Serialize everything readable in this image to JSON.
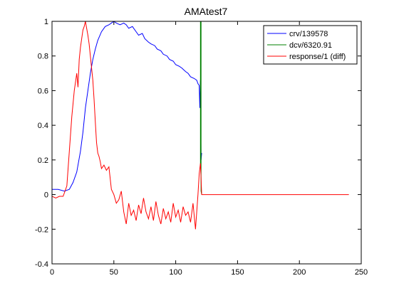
{
  "chart_data": {
    "type": "line",
    "title": "AMAtest7",
    "xlabel": "",
    "ylabel": "",
    "xlim": [
      0,
      250
    ],
    "ylim": [
      -0.4,
      1
    ],
    "xticks": [
      0,
      50,
      100,
      150,
      200,
      250
    ],
    "yticks": [
      -0.4,
      -0.2,
      0,
      0.2,
      0.4,
      0.6,
      0.8,
      1
    ],
    "grid": false,
    "legend_position": "top-right",
    "series": [
      {
        "name": "crv/139578",
        "color": "#0000ff",
        "x": [
          0,
          5,
          10,
          14,
          17,
          20,
          23,
          25,
          27,
          29,
          31,
          33,
          35,
          37,
          40,
          43,
          46,
          48,
          50,
          52,
          55,
          58,
          60,
          62,
          65,
          68,
          70,
          73,
          75,
          78,
          80,
          83,
          85,
          88,
          90,
          93,
          95,
          98,
          100,
          103,
          105,
          108,
          110,
          112,
          115,
          117,
          118,
          119,
          119.5,
          120,
          120.5,
          121
        ],
        "y": [
          0.03,
          0.03,
          0.02,
          0.03,
          0.07,
          0.13,
          0.25,
          0.36,
          0.5,
          0.6,
          0.7,
          0.78,
          0.84,
          0.89,
          0.94,
          0.97,
          0.98,
          0.99,
          1.0,
          0.99,
          0.98,
          0.99,
          0.98,
          0.96,
          0.97,
          0.94,
          0.92,
          0.93,
          0.9,
          0.88,
          0.87,
          0.86,
          0.84,
          0.83,
          0.81,
          0.8,
          0.78,
          0.77,
          0.75,
          0.74,
          0.73,
          0.71,
          0.7,
          0.68,
          0.67,
          0.66,
          0.64,
          0.63,
          0.5,
          0.66,
          0.2,
          0.24
        ]
      },
      {
        "name": "dcv/6320.91",
        "color": "#008000",
        "x": [
          120,
          120,
          120.5,
          120.5,
          121
        ],
        "y": [
          0.16,
          1.0,
          1.0,
          0.02,
          0.0
        ]
      },
      {
        "name": "response/1 (diff)",
        "color": "#ff0000",
        "x": [
          0,
          3,
          6,
          9,
          12,
          14,
          16,
          18,
          20,
          21,
          22,
          23,
          24,
          25,
          26,
          27,
          28,
          29,
          30,
          31,
          32,
          33,
          34,
          35,
          36,
          37,
          38,
          39,
          40,
          42,
          44,
          46,
          48,
          50,
          52,
          54,
          56,
          58,
          60,
          62,
          64,
          66,
          68,
          70,
          72,
          74,
          76,
          78,
          80,
          82,
          84,
          86,
          88,
          90,
          92,
          94,
          96,
          98,
          100,
          102,
          104,
          106,
          108,
          110,
          112,
          114,
          116,
          117,
          118,
          119,
          120,
          121,
          125,
          150,
          200,
          240
        ],
        "y": [
          -0.01,
          -0.02,
          -0.01,
          -0.01,
          0.05,
          0.25,
          0.45,
          0.6,
          0.7,
          0.62,
          0.78,
          0.85,
          0.9,
          0.95,
          0.97,
          1.0,
          0.96,
          0.92,
          0.87,
          0.8,
          0.73,
          0.66,
          0.55,
          0.42,
          0.3,
          0.24,
          0.22,
          0.19,
          0.15,
          0.17,
          0.14,
          0.16,
          0.03,
          0.0,
          -0.05,
          -0.03,
          0.02,
          -0.1,
          -0.17,
          -0.05,
          -0.12,
          -0.09,
          -0.15,
          -0.06,
          -0.11,
          -0.02,
          -0.1,
          -0.14,
          -0.07,
          -0.15,
          -0.04,
          -0.12,
          -0.17,
          -0.08,
          -0.14,
          -0.1,
          -0.16,
          -0.05,
          -0.13,
          -0.09,
          -0.16,
          -0.07,
          -0.12,
          -0.1,
          -0.16,
          -0.05,
          -0.2,
          -0.1,
          0.0,
          0.12,
          0.18,
          0.0,
          0.0,
          0.0,
          0.0,
          0.0
        ]
      }
    ]
  }
}
